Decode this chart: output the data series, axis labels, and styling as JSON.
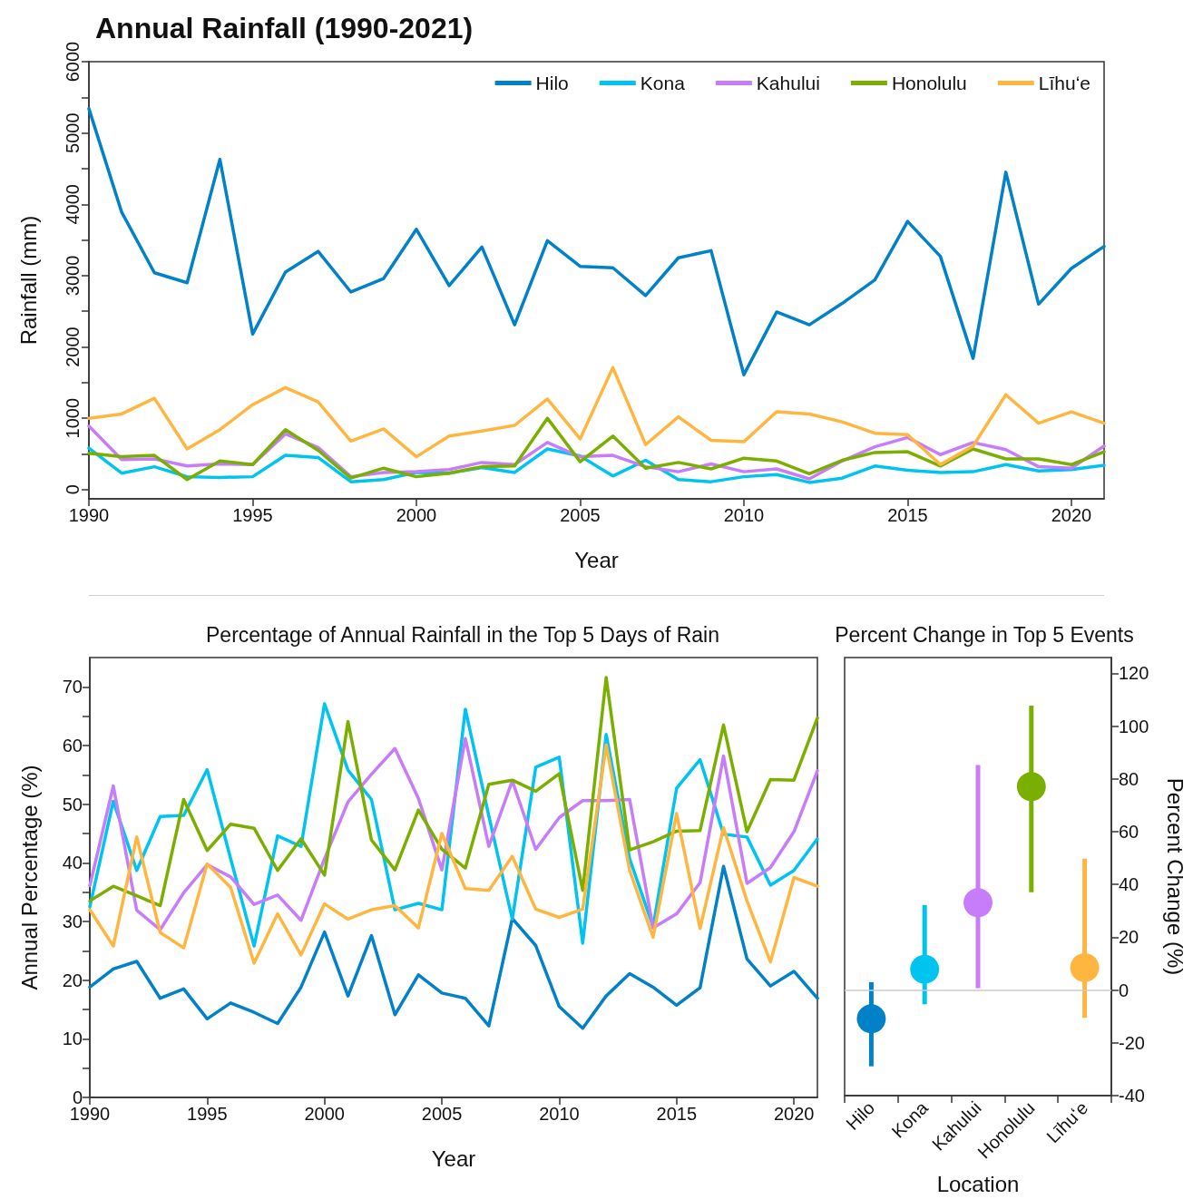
{
  "chart_data": [
    {
      "type": "line",
      "title": "Annual Rainfall (1990-2021)",
      "xlabel": "Year",
      "ylabel": "Rainfall (mm)",
      "x": [
        1990,
        1991,
        1992,
        1993,
        1994,
        1995,
        1996,
        1997,
        1998,
        1999,
        2000,
        2001,
        2002,
        2003,
        2004,
        2005,
        2006,
        2007,
        2008,
        2009,
        2010,
        2011,
        2012,
        2013,
        2014,
        2015,
        2016,
        2017,
        2018,
        2019,
        2020,
        2021
      ],
      "series": [
        {
          "name": "Hilo",
          "color": "#0081c8",
          "values": [
            5340,
            3890,
            3040,
            2900,
            4630,
            2180,
            3050,
            3340,
            2770,
            2960,
            3650,
            2860,
            3400,
            2310,
            3490,
            3130,
            3110,
            2720,
            3250,
            3350,
            1610,
            2490,
            2310,
            2610,
            2940,
            3760,
            3270,
            1840,
            4450,
            2600,
            3100,
            3410
          ]
        },
        {
          "name": "Kona",
          "color": "#00c4f0",
          "values": [
            580,
            230,
            320,
            180,
            170,
            180,
            480,
            450,
            110,
            140,
            240,
            230,
            310,
            240,
            570,
            470,
            190,
            410,
            140,
            110,
            180,
            210,
            100,
            160,
            330,
            270,
            240,
            250,
            350,
            260,
            280,
            340
          ]
        },
        {
          "name": "Kahului",
          "color": "#c77cf9",
          "values": [
            890,
            420,
            430,
            330,
            360,
            350,
            780,
            590,
            180,
            240,
            250,
            280,
            380,
            350,
            660,
            460,
            480,
            320,
            250,
            360,
            250,
            290,
            150,
            400,
            600,
            730,
            490,
            660,
            560,
            320,
            300,
            610
          ]
        },
        {
          "name": "Honolulu",
          "color": "#7aaf00",
          "values": [
            510,
            460,
            480,
            140,
            400,
            350,
            840,
            550,
            160,
            300,
            180,
            230,
            320,
            330,
            1000,
            390,
            750,
            300,
            380,
            290,
            440,
            400,
            220,
            410,
            520,
            530,
            330,
            570,
            430,
            430,
            350,
            530
          ]
        },
        {
          "name": "Līhuʻe",
          "color": "#ffb641",
          "values": [
            1000,
            1060,
            1280,
            570,
            840,
            1190,
            1430,
            1230,
            680,
            850,
            460,
            750,
            820,
            900,
            1270,
            710,
            1710,
            630,
            1020,
            690,
            670,
            1090,
            1060,
            950,
            790,
            770,
            350,
            610,
            1330,
            930,
            1090,
            930
          ]
        }
      ],
      "xlim": [
        1990,
        2021
      ],
      "xticks": [
        1990,
        1995,
        2000,
        2005,
        2010,
        2015,
        2020
      ],
      "ylim": [
        -130,
        6000
      ],
      "yticks": [
        0,
        {
          "value": 500,
          "label": null
        },
        1000,
        {
          "value": 1500,
          "label": null
        },
        2000,
        {
          "value": 2500,
          "label": null
        },
        3000,
        {
          "value": 3500,
          "label": null
        },
        4000,
        {
          "value": 4500,
          "label": null
        },
        5000,
        {
          "value": 5500,
          "label": null
        },
        6000
      ],
      "legend": "top right",
      "marker": "none",
      "line_style": "solid"
    },
    {
      "type": "line",
      "title": "Percentage of Annual Rainfall in the Top 5 Days of Rain",
      "xlabel": "Year",
      "ylabel": "Annual Percentage (%)",
      "x": [
        1990,
        1991,
        1992,
        1993,
        1994,
        1995,
        1996,
        1997,
        1998,
        1999,
        2000,
        2001,
        2002,
        2003,
        2004,
        2005,
        2006,
        2007,
        2008,
        2009,
        2010,
        2011,
        2012,
        2013,
        2014,
        2015,
        2016,
        2017,
        2018,
        2019,
        2020,
        2021
      ],
      "series": [
        {
          "color": "#0081c8",
          "values": [
            18.8,
            21.9,
            23.2,
            16.9,
            18.5,
            13.4,
            16.1,
            14.5,
            12.6,
            18.8,
            28.2,
            17.3,
            27.6,
            14.1,
            20.9,
            17.8,
            16.9,
            12.2,
            30.5,
            25.9,
            15.5,
            11.8,
            17.3,
            21.1,
            18.8,
            15.7,
            18.7,
            39.4,
            23.6,
            19.0,
            21.5,
            16.9
          ]
        },
        {
          "color": "#00c4f0",
          "values": [
            32.5,
            50.5,
            38.7,
            47.9,
            48.1,
            55.9,
            40.7,
            25.8,
            44.6,
            42.8,
            67.1,
            55.8,
            50.8,
            32.0,
            33.1,
            32.0,
            66.2,
            48.0,
            30.4,
            56.3,
            58.0,
            26.3,
            61.9,
            40.7,
            29.1,
            52.7,
            57.6,
            44.9,
            44.4,
            36.2,
            38.7,
            44.1
          ]
        },
        {
          "color": "#c77cf9",
          "values": [
            36.1,
            53.1,
            31.9,
            28.6,
            34.9,
            39.7,
            37.6,
            32.9,
            34.5,
            30.2,
            40.7,
            50.4,
            55.1,
            59.5,
            51.0,
            38.8,
            61.2,
            42.8,
            54.0,
            42.3,
            47.7,
            50.6,
            50.6,
            50.8,
            28.9,
            31.3,
            36.6,
            58.2,
            36.5,
            39.2,
            45.3,
            55.7
          ]
        },
        {
          "color": "#7aaf00",
          "values": [
            33.5,
            36.0,
            34.4,
            32.7,
            50.8,
            42.1,
            46.6,
            45.9,
            38.7,
            44.1,
            37.9,
            64.1,
            43.9,
            38.8,
            49.0,
            42.3,
            39.1,
            53.4,
            54.1,
            52.2,
            55.2,
            35.3,
            71.6,
            42.2,
            43.6,
            45.4,
            45.5,
            63.5,
            45.3,
            54.2,
            54.1,
            64.7
          ]
        },
        {
          "color": "#ffb641",
          "values": [
            32.0,
            25.8,
            44.4,
            28.1,
            25.5,
            39.8,
            35.8,
            22.9,
            31.3,
            24.3,
            33.0,
            30.4,
            32.0,
            32.7,
            28.9,
            45.0,
            35.6,
            35.3,
            41.1,
            32.1,
            30.7,
            32.1,
            60.1,
            38.7,
            27.3,
            48.4,
            28.8,
            46.0,
            33.5,
            23.1,
            37.5,
            36.0
          ]
        }
      ],
      "xlim": [
        1990,
        2021
      ],
      "xticks": [
        1990,
        1995,
        2000,
        2005,
        2010,
        2015,
        2020
      ],
      "ylim": [
        0,
        75
      ],
      "yticks": [
        0,
        {
          "value": 5,
          "label": null
        },
        10,
        {
          "value": 15,
          "label": null
        },
        20,
        {
          "value": 25,
          "label": null
        },
        30,
        {
          "value": 35,
          "label": null
        },
        40,
        {
          "value": 45,
          "label": null
        },
        50,
        {
          "value": 55,
          "label": null
        },
        60,
        {
          "value": 65,
          "label": null
        },
        70
      ],
      "marker": "none",
      "line_style": "solid"
    },
    {
      "type": "scatter",
      "title": "Percent Change in Top 5 Events",
      "xlabel": "Location",
      "ylabel": "Percent Change (%)",
      "categories": [
        "Hilo",
        "Kona",
        "Kahului",
        "Honolulu",
        "Līhuʻe"
      ],
      "values": [
        -10.9,
        7.9,
        33.1,
        77.1,
        8.5
      ],
      "colors": [
        "#0081c8",
        "#00c4f0",
        "#c77cf9",
        "#7aaf00",
        "#ffb641"
      ],
      "errors": [
        [
          -28.9,
          3.0
        ],
        [
          -5.4,
          32.2
        ],
        [
          0.7,
          85.3
        ],
        [
          37.1,
          107.8
        ],
        [
          -10.5,
          49.8
        ]
      ],
      "ylim": [
        -40,
        126
      ],
      "yticks": [
        -40,
        -20,
        0,
        20,
        40,
        60,
        80,
        100,
        120
      ],
      "ref_lines": [
        {
          "axis": "y",
          "value": 0,
          "color": "#cccccc"
        }
      ],
      "marker": "circle"
    }
  ]
}
